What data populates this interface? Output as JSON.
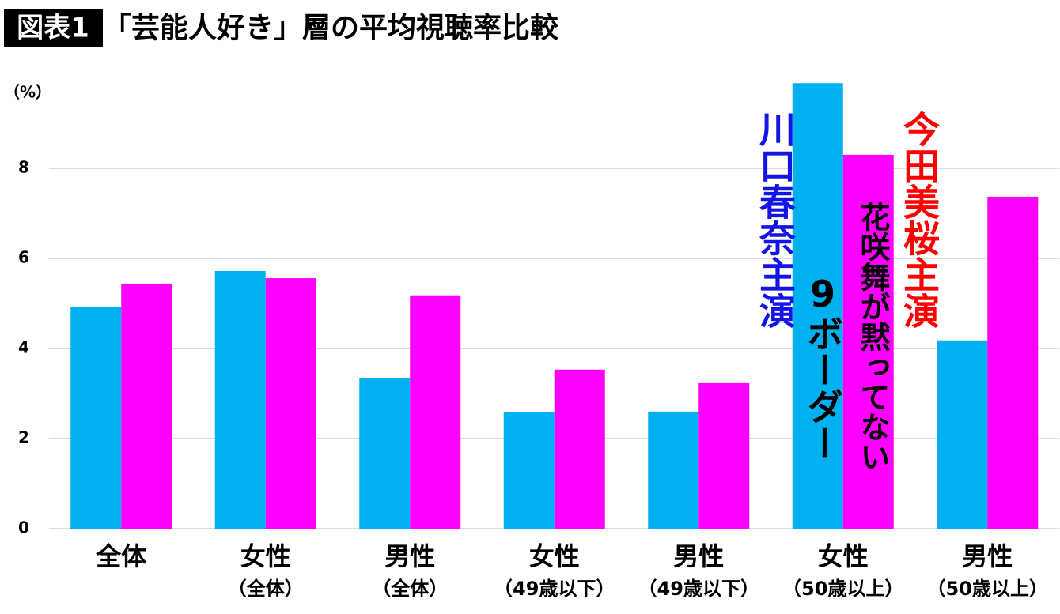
{
  "chart_data": {
    "type": "bar",
    "title_label": "図表1",
    "title": "「芸能人好き」層の平均視聴率比較",
    "y_label": "（%）",
    "categories": [
      [
        "全体"
      ],
      [
        "女性",
        "（全体）"
      ],
      [
        "男性",
        "（全体）"
      ],
      [
        "女性",
        "（49歳以下）"
      ],
      [
        "男性",
        "（49歳以下）"
      ],
      [
        "女性",
        "（50歳以上）"
      ],
      [
        "男性",
        "（50歳以上）"
      ]
    ],
    "series": [
      {
        "color": "#00b0f0",
        "values": [
          4.93,
          5.72,
          3.35,
          2.58,
          2.6,
          9.89,
          4.18
        ]
      },
      {
        "color": "#ff00ff",
        "values": [
          5.44,
          5.56,
          5.18,
          3.53,
          3.23,
          8.3,
          7.37
        ]
      }
    ],
    "ylim": [
      0,
      10
    ],
    "yticks": [
      0,
      2,
      4,
      6,
      8
    ],
    "grid": true,
    "annotations": [
      {
        "text": "川口春奈主演",
        "color": "#1414e6"
      },
      {
        "text": "9ボーダー",
        "color": "#000000"
      },
      {
        "text": "花咲舞が黙ってない",
        "color": "#000000"
      },
      {
        "text": "今田美桜主演",
        "color": "#ff0000"
      }
    ]
  }
}
